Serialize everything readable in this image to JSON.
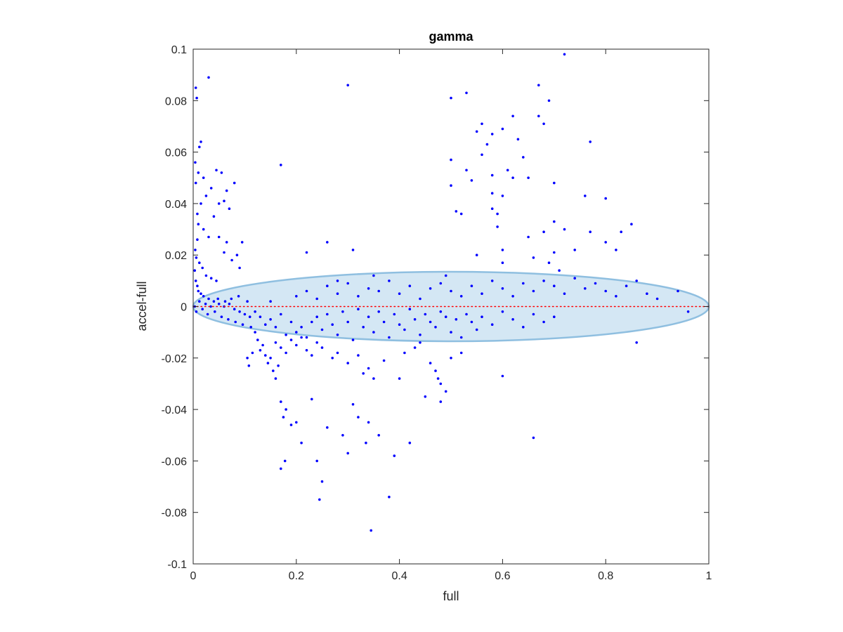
{
  "chart_data": {
    "type": "scatter",
    "title": "gamma",
    "xlabel": "full",
    "ylabel": "accel-full",
    "xlim": [
      0,
      1
    ],
    "ylim": [
      -0.1,
      0.1
    ],
    "x_ticks": [
      "0",
      "0.2",
      "0.4",
      "0.6",
      "0.8",
      "1"
    ],
    "y_ticks": [
      "-0.1",
      "-0.08",
      "-0.06",
      "-0.04",
      "-0.02",
      "0",
      "0.02",
      "0.04",
      "0.06",
      "0.08",
      "0.1"
    ],
    "grid": false,
    "colors": {
      "points": "#0000ff",
      "reference_line": "#ff0000",
      "ellipse_fill": "#c6dff0",
      "ellipse_edge": "#8fbfe0"
    },
    "reference_line": {
      "y": 0,
      "style": "dotted"
    },
    "ellipse": {
      "center": [
        0.5,
        0
      ],
      "x_radius": 0.5,
      "y_radius": 0.0135
    },
    "series": [
      {
        "points": [
          [
            0.005,
            0.085
          ],
          [
            0.007,
            0.081
          ],
          [
            0.03,
            0.089
          ],
          [
            0.015,
            0.064
          ],
          [
            0.012,
            0.062
          ],
          [
            0.004,
            0.056
          ],
          [
            0.01,
            0.052
          ],
          [
            0.02,
            0.05
          ],
          [
            0.005,
            0.048
          ],
          [
            0.045,
            0.053
          ],
          [
            0.055,
            0.052
          ],
          [
            0.065,
            0.045
          ],
          [
            0.08,
            0.048
          ],
          [
            0.06,
            0.041
          ],
          [
            0.05,
            0.04
          ],
          [
            0.07,
            0.038
          ],
          [
            0.04,
            0.035
          ],
          [
            0.035,
            0.046
          ],
          [
            0.025,
            0.043
          ],
          [
            0.015,
            0.04
          ],
          [
            0.008,
            0.036
          ],
          [
            0.01,
            0.032
          ],
          [
            0.02,
            0.03
          ],
          [
            0.03,
            0.027
          ],
          [
            0.05,
            0.027
          ],
          [
            0.06,
            0.021
          ],
          [
            0.065,
            0.025
          ],
          [
            0.075,
            0.018
          ],
          [
            0.085,
            0.02
          ],
          [
            0.09,
            0.015
          ],
          [
            0.095,
            0.025
          ],
          [
            0.008,
            0.026
          ],
          [
            0.004,
            0.022
          ],
          [
            0.006,
            0.019
          ],
          [
            0.012,
            0.017
          ],
          [
            0.018,
            0.015
          ],
          [
            0.025,
            0.012
          ],
          [
            0.035,
            0.011
          ],
          [
            0.045,
            0.01
          ],
          [
            0.003,
            0.014
          ],
          [
            0.005,
            0.01
          ],
          [
            0.008,
            0.008
          ],
          [
            0.01,
            0.006
          ],
          [
            0.015,
            0.005
          ],
          [
            0.02,
            0.004
          ],
          [
            0.03,
            0.003
          ],
          [
            0.04,
            0.002
          ],
          [
            0.05,
            0.001
          ],
          [
            0.06,
            0.0
          ],
          [
            0.07,
            0.001
          ],
          [
            0.08,
            -0.001
          ],
          [
            0.09,
            -0.002
          ],
          [
            0.1,
            -0.003
          ],
          [
            0.11,
            -0.004
          ],
          [
            0.003,
            0.0
          ],
          [
            0.006,
            -0.002
          ],
          [
            0.012,
            0.002
          ],
          [
            0.018,
            -0.001
          ],
          [
            0.024,
            0.001
          ],
          [
            0.028,
            -0.003
          ],
          [
            0.034,
            0.0
          ],
          [
            0.042,
            -0.002
          ],
          [
            0.048,
            0.003
          ],
          [
            0.055,
            -0.004
          ],
          [
            0.062,
            0.002
          ],
          [
            0.068,
            -0.005
          ],
          [
            0.074,
            0.003
          ],
          [
            0.082,
            -0.006
          ],
          [
            0.088,
            0.004
          ],
          [
            0.096,
            -0.007
          ],
          [
            0.105,
            0.002
          ],
          [
            0.112,
            -0.008
          ],
          [
            0.12,
            -0.01
          ],
          [
            0.125,
            -0.013
          ],
          [
            0.13,
            -0.017
          ],
          [
            0.135,
            -0.015
          ],
          [
            0.14,
            -0.019
          ],
          [
            0.145,
            -0.022
          ],
          [
            0.15,
            -0.02
          ],
          [
            0.155,
            -0.025
          ],
          [
            0.16,
            -0.028
          ],
          [
            0.165,
            -0.023
          ],
          [
            0.105,
            -0.02
          ],
          [
            0.108,
            -0.023
          ],
          [
            0.115,
            -0.018
          ],
          [
            0.17,
            -0.037
          ],
          [
            0.175,
            -0.043
          ],
          [
            0.18,
            -0.04
          ],
          [
            0.19,
            -0.046
          ],
          [
            0.2,
            -0.045
          ],
          [
            0.21,
            -0.053
          ],
          [
            0.17,
            -0.063
          ],
          [
            0.178,
            -0.06
          ],
          [
            0.23,
            -0.036
          ],
          [
            0.24,
            -0.06
          ],
          [
            0.245,
            -0.075
          ],
          [
            0.25,
            -0.068
          ],
          [
            0.26,
            -0.047
          ],
          [
            0.29,
            -0.05
          ],
          [
            0.3,
            -0.057
          ],
          [
            0.31,
            -0.038
          ],
          [
            0.32,
            -0.043
          ],
          [
            0.335,
            -0.053
          ],
          [
            0.34,
            -0.045
          ],
          [
            0.345,
            -0.087
          ],
          [
            0.36,
            -0.05
          ],
          [
            0.38,
            -0.074
          ],
          [
            0.39,
            -0.058
          ],
          [
            0.42,
            -0.053
          ],
          [
            0.45,
            -0.035
          ],
          [
            0.46,
            -0.022
          ],
          [
            0.47,
            -0.025
          ],
          [
            0.475,
            -0.028
          ],
          [
            0.48,
            -0.03
          ],
          [
            0.49,
            -0.033
          ],
          [
            0.48,
            -0.037
          ],
          [
            0.5,
            -0.02
          ],
          [
            0.52,
            -0.018
          ],
          [
            0.6,
            -0.027
          ],
          [
            0.66,
            -0.051
          ],
          [
            0.86,
            -0.014
          ],
          [
            0.2,
            -0.01
          ],
          [
            0.21,
            -0.008
          ],
          [
            0.22,
            -0.012
          ],
          [
            0.23,
            -0.006
          ],
          [
            0.24,
            -0.004
          ],
          [
            0.25,
            -0.009
          ],
          [
            0.26,
            -0.003
          ],
          [
            0.27,
            -0.007
          ],
          [
            0.28,
            -0.011
          ],
          [
            0.29,
            -0.002
          ],
          [
            0.3,
            -0.006
          ],
          [
            0.31,
            -0.013
          ],
          [
            0.32,
            -0.001
          ],
          [
            0.33,
            -0.008
          ],
          [
            0.34,
            -0.004
          ],
          [
            0.35,
            -0.01
          ],
          [
            0.36,
            -0.002
          ],
          [
            0.37,
            -0.006
          ],
          [
            0.38,
            -0.012
          ],
          [
            0.39,
            -0.003
          ],
          [
            0.4,
            -0.007
          ],
          [
            0.41,
            -0.009
          ],
          [
            0.42,
            -0.001
          ],
          [
            0.43,
            -0.005
          ],
          [
            0.44,
            -0.011
          ],
          [
            0.45,
            -0.003
          ],
          [
            0.46,
            -0.006
          ],
          [
            0.47,
            -0.008
          ],
          [
            0.48,
            -0.002
          ],
          [
            0.49,
            -0.004
          ],
          [
            0.5,
            -0.01
          ],
          [
            0.51,
            -0.005
          ],
          [
            0.52,
            -0.012
          ],
          [
            0.53,
            -0.003
          ],
          [
            0.54,
            -0.006
          ],
          [
            0.55,
            -0.009
          ],
          [
            0.56,
            -0.004
          ],
          [
            0.58,
            -0.007
          ],
          [
            0.6,
            -0.002
          ],
          [
            0.62,
            -0.005
          ],
          [
            0.64,
            -0.008
          ],
          [
            0.66,
            -0.003
          ],
          [
            0.68,
            -0.006
          ],
          [
            0.7,
            -0.004
          ],
          [
            0.2,
            0.004
          ],
          [
            0.22,
            0.006
          ],
          [
            0.24,
            0.003
          ],
          [
            0.26,
            0.008
          ],
          [
            0.28,
            0.005
          ],
          [
            0.3,
            0.009
          ],
          [
            0.32,
            0.004
          ],
          [
            0.34,
            0.007
          ],
          [
            0.36,
            0.006
          ],
          [
            0.38,
            0.01
          ],
          [
            0.4,
            0.005
          ],
          [
            0.42,
            0.008
          ],
          [
            0.44,
            0.003
          ],
          [
            0.46,
            0.007
          ],
          [
            0.48,
            0.009
          ],
          [
            0.5,
            0.006
          ],
          [
            0.52,
            0.004
          ],
          [
            0.54,
            0.008
          ],
          [
            0.56,
            0.005
          ],
          [
            0.58,
            0.01
          ],
          [
            0.6,
            0.007
          ],
          [
            0.62,
            0.004
          ],
          [
            0.64,
            0.009
          ],
          [
            0.66,
            0.006
          ],
          [
            0.68,
            0.01
          ],
          [
            0.7,
            0.008
          ],
          [
            0.72,
            0.005
          ],
          [
            0.74,
            0.011
          ],
          [
            0.76,
            0.007
          ],
          [
            0.78,
            0.009
          ],
          [
            0.8,
            0.006
          ],
          [
            0.82,
            0.004
          ],
          [
            0.84,
            0.008
          ],
          [
            0.86,
            0.01
          ],
          [
            0.88,
            0.005
          ],
          [
            0.9,
            0.003
          ],
          [
            0.94,
            0.006
          ],
          [
            0.96,
            -0.002
          ],
          [
            0.15,
            -0.005
          ],
          [
            0.16,
            -0.008
          ],
          [
            0.17,
            -0.003
          ],
          [
            0.18,
            -0.011
          ],
          [
            0.19,
            -0.006
          ],
          [
            0.15,
            0.002
          ],
          [
            0.16,
            -0.014
          ],
          [
            0.14,
            -0.007
          ],
          [
            0.13,
            -0.004
          ],
          [
            0.12,
            -0.002
          ],
          [
            0.17,
            -0.016
          ],
          [
            0.18,
            -0.018
          ],
          [
            0.19,
            -0.013
          ],
          [
            0.2,
            -0.015
          ],
          [
            0.21,
            -0.012
          ],
          [
            0.22,
            -0.017
          ],
          [
            0.23,
            -0.019
          ],
          [
            0.24,
            -0.014
          ],
          [
            0.25,
            -0.016
          ],
          [
            0.27,
            -0.02
          ],
          [
            0.28,
            -0.018
          ],
          [
            0.3,
            -0.022
          ],
          [
            0.32,
            -0.019
          ],
          [
            0.33,
            -0.026
          ],
          [
            0.34,
            -0.024
          ],
          [
            0.35,
            -0.028
          ],
          [
            0.37,
            -0.021
          ],
          [
            0.4,
            -0.028
          ],
          [
            0.41,
            -0.018
          ],
          [
            0.43,
            -0.016
          ],
          [
            0.44,
            -0.014
          ],
          [
            0.17,
            0.055
          ],
          [
            0.22,
            0.021
          ],
          [
            0.26,
            0.025
          ],
          [
            0.31,
            0.022
          ],
          [
            0.3,
            0.086
          ],
          [
            0.5,
            0.081
          ],
          [
            0.53,
            0.083
          ],
          [
            0.5,
            0.057
          ],
          [
            0.5,
            0.047
          ],
          [
            0.51,
            0.037
          ],
          [
            0.52,
            0.036
          ],
          [
            0.53,
            0.053
          ],
          [
            0.54,
            0.049
          ],
          [
            0.55,
            0.068
          ],
          [
            0.56,
            0.059
          ],
          [
            0.56,
            0.071
          ],
          [
            0.57,
            0.063
          ],
          [
            0.58,
            0.051
          ],
          [
            0.58,
            0.067
          ],
          [
            0.58,
            0.044
          ],
          [
            0.58,
            0.038
          ],
          [
            0.59,
            0.031
          ],
          [
            0.59,
            0.036
          ],
          [
            0.6,
            0.022
          ],
          [
            0.6,
            0.017
          ],
          [
            0.6,
            0.043
          ],
          [
            0.61,
            0.053
          ],
          [
            0.6,
            0.069
          ],
          [
            0.62,
            0.074
          ],
          [
            0.62,
            0.05
          ],
          [
            0.63,
            0.065
          ],
          [
            0.64,
            0.058
          ],
          [
            0.65,
            0.05
          ],
          [
            0.65,
            0.027
          ],
          [
            0.66,
            0.019
          ],
          [
            0.67,
            0.086
          ],
          [
            0.67,
            0.074
          ],
          [
            0.68,
            0.071
          ],
          [
            0.68,
            0.029
          ],
          [
            0.69,
            0.08
          ],
          [
            0.7,
            0.048
          ],
          [
            0.7,
            0.033
          ],
          [
            0.7,
            0.021
          ],
          [
            0.72,
            0.098
          ],
          [
            0.72,
            0.03
          ],
          [
            0.74,
            0.022
          ],
          [
            0.76,
            0.043
          ],
          [
            0.77,
            0.064
          ],
          [
            0.77,
            0.029
          ],
          [
            0.8,
            0.042
          ],
          [
            0.8,
            0.025
          ],
          [
            0.82,
            0.022
          ],
          [
            0.83,
            0.029
          ],
          [
            0.85,
            0.032
          ],
          [
            0.69,
            0.017
          ],
          [
            0.71,
            0.014
          ],
          [
            0.55,
            0.02
          ],
          [
            0.49,
            0.012
          ],
          [
            0.35,
            0.012
          ],
          [
            0.28,
            0.01
          ]
        ]
      }
    ]
  }
}
